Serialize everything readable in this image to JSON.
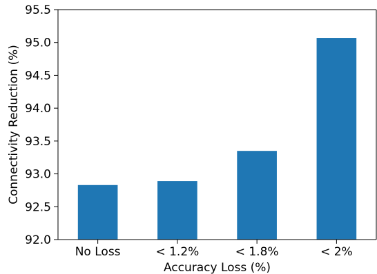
{
  "chart_data": {
    "type": "bar",
    "categories": [
      "No Loss",
      "< 1.2%",
      "< 1.8%",
      "< 2%"
    ],
    "values": [
      92.83,
      92.89,
      93.35,
      95.07
    ],
    "title": "",
    "xlabel": "Accuracy Loss (%)",
    "ylabel": "Connectivity Reduction (%)",
    "ylim": [
      92.0,
      95.5
    ],
    "yticks": [
      "92.0",
      "92.5",
      "93.0",
      "93.5",
      "94.0",
      "94.5",
      "95.0",
      "95.5"
    ],
    "bar_color": "#1f77b4",
    "grid": false,
    "legend": "none"
  }
}
